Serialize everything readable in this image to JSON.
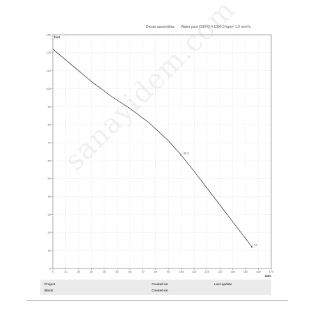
{
  "header": {
    "left_text": "Dense assemblies",
    "right_text": "Water pure [100%] 4 1000.0 kg/m³ 1.0 mm²/s"
  },
  "chart_data": {
    "type": "line",
    "ylabel": "feet",
    "xlabel": "gpm",
    "xlim": [
      0,
      170
    ],
    "ylim": [
      0,
      130
    ],
    "x_ticks": [
      0,
      10,
      20,
      30,
      40,
      50,
      60,
      70,
      80,
      90,
      100,
      110,
      120,
      130,
      140,
      150,
      160,
      170
    ],
    "y_ticks": [
      0,
      10,
      20,
      30,
      40,
      50,
      60,
      70,
      80,
      90,
      100,
      110,
      120,
      130
    ],
    "grid": true,
    "series": [
      {
        "x": [
          0,
          15,
          30,
          45,
          60,
          75,
          90,
          100,
          110,
          125,
          140,
          155
        ],
        "y": [
          122,
          113,
          104,
          96,
          89,
          81,
          71,
          63,
          54,
          40,
          26,
          12
        ]
      }
    ],
    "points": [
      {
        "x": 100,
        "y": 63,
        "label": "63.3"
      },
      {
        "x": 155,
        "y": 12,
        "label": "12"
      }
    ]
  },
  "watermark": "sanayidem.com",
  "footer": {
    "project": "Project",
    "block": "Block",
    "created_on": "Created on",
    "created_by": "Created on",
    "last_update": "Last update"
  }
}
